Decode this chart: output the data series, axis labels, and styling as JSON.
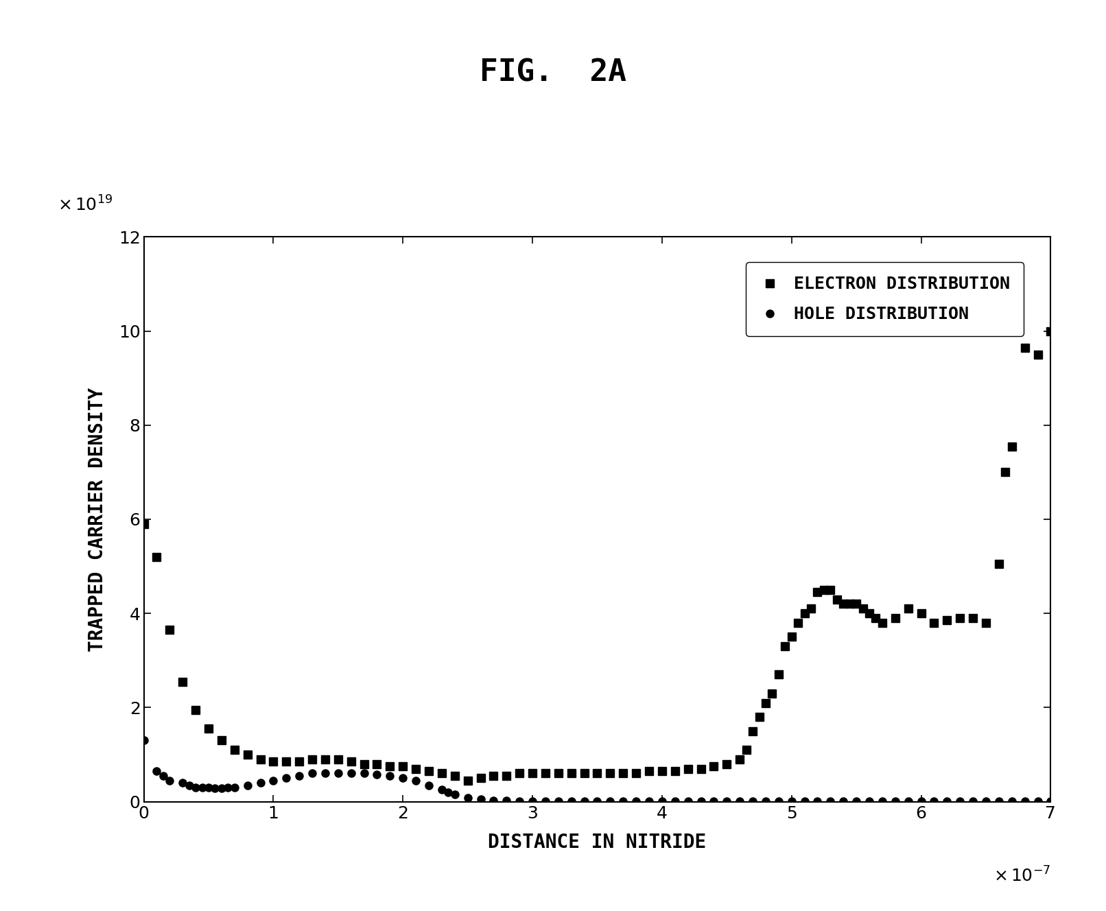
{
  "title": "FIG.  2A",
  "xlabel": "DISTANCE IN NITRIDE",
  "ylabel": "TRAPPED CARRIER DENSITY",
  "xlim": [
    0,
    7
  ],
  "ylim": [
    0,
    12
  ],
  "xticks": [
    0,
    1,
    2,
    3,
    4,
    5,
    6,
    7
  ],
  "yticks": [
    0,
    2,
    4,
    6,
    8,
    10,
    12
  ],
  "legend_electron": "ELECTRON DISTRIBUTION",
  "legend_hole": "HOLE DISTRIBUTION",
  "electron_x": [
    0.0,
    0.1,
    0.2,
    0.3,
    0.4,
    0.5,
    0.6,
    0.7,
    0.8,
    0.9,
    1.0,
    1.1,
    1.2,
    1.3,
    1.4,
    1.5,
    1.6,
    1.7,
    1.8,
    1.9,
    2.0,
    2.1,
    2.2,
    2.3,
    2.4,
    2.5,
    2.6,
    2.7,
    2.8,
    2.9,
    3.0,
    3.1,
    3.2,
    3.3,
    3.4,
    3.5,
    3.6,
    3.7,
    3.8,
    3.9,
    4.0,
    4.1,
    4.2,
    4.3,
    4.4,
    4.5,
    4.6,
    4.65,
    4.7,
    4.75,
    4.8,
    4.85,
    4.9,
    4.95,
    5.0,
    5.05,
    5.1,
    5.15,
    5.2,
    5.25,
    5.3,
    5.35,
    5.4,
    5.45,
    5.5,
    5.55,
    5.6,
    5.65,
    5.7,
    5.8,
    5.9,
    6.0,
    6.1,
    6.2,
    6.3,
    6.4,
    6.5,
    6.6,
    6.65,
    6.7,
    6.8,
    6.9,
    7.0
  ],
  "electron_y": [
    5.9,
    5.2,
    3.65,
    2.55,
    1.95,
    1.55,
    1.3,
    1.1,
    1.0,
    0.9,
    0.85,
    0.85,
    0.85,
    0.9,
    0.9,
    0.9,
    0.85,
    0.8,
    0.8,
    0.75,
    0.75,
    0.7,
    0.65,
    0.6,
    0.55,
    0.45,
    0.5,
    0.55,
    0.55,
    0.6,
    0.6,
    0.6,
    0.6,
    0.6,
    0.6,
    0.6,
    0.6,
    0.6,
    0.6,
    0.65,
    0.65,
    0.65,
    0.7,
    0.7,
    0.75,
    0.8,
    0.9,
    1.1,
    1.5,
    1.8,
    2.1,
    2.3,
    2.7,
    3.3,
    3.5,
    3.8,
    4.0,
    4.1,
    4.45,
    4.5,
    4.5,
    4.3,
    4.2,
    4.2,
    4.2,
    4.1,
    4.0,
    3.9,
    3.8,
    3.9,
    4.1,
    4.0,
    3.8,
    3.85,
    3.9,
    3.9,
    3.8,
    5.05,
    7.0,
    7.55,
    9.65,
    9.5,
    10.0
  ],
  "hole_x": [
    0.0,
    0.1,
    0.15,
    0.2,
    0.3,
    0.35,
    0.4,
    0.45,
    0.5,
    0.55,
    0.6,
    0.65,
    0.7,
    0.8,
    0.9,
    1.0,
    1.1,
    1.2,
    1.3,
    1.4,
    1.5,
    1.6,
    1.7,
    1.8,
    1.9,
    2.0,
    2.1,
    2.2,
    2.3,
    2.35,
    2.4,
    2.5,
    2.6,
    2.7,
    2.8,
    2.9,
    3.0,
    3.1,
    3.2,
    3.3,
    3.4,
    3.5,
    3.6,
    3.7,
    3.8,
    3.9,
    4.0,
    4.1,
    4.2,
    4.3,
    4.4,
    4.5,
    4.6,
    4.7,
    4.8,
    4.9,
    5.0,
    5.1,
    5.2,
    5.3,
    5.4,
    5.5,
    5.6,
    5.7,
    5.8,
    5.9,
    6.0,
    6.1,
    6.2,
    6.3,
    6.4,
    6.5,
    6.6,
    6.7,
    6.8,
    6.9,
    7.0
  ],
  "hole_y": [
    1.3,
    0.65,
    0.55,
    0.45,
    0.4,
    0.35,
    0.3,
    0.3,
    0.3,
    0.28,
    0.28,
    0.3,
    0.3,
    0.35,
    0.4,
    0.45,
    0.5,
    0.55,
    0.6,
    0.6,
    0.6,
    0.6,
    0.6,
    0.58,
    0.55,
    0.5,
    0.45,
    0.35,
    0.25,
    0.2,
    0.15,
    0.08,
    0.05,
    0.03,
    0.02,
    0.01,
    0.005,
    0.005,
    0.005,
    0.005,
    0.005,
    0.005,
    0.005,
    0.005,
    0.005,
    0.005,
    0.005,
    0.005,
    0.005,
    0.005,
    0.005,
    0.005,
    0.005,
    0.005,
    0.005,
    0.005,
    0.005,
    0.005,
    0.005,
    0.005,
    0.005,
    0.005,
    0.005,
    0.005,
    0.005,
    0.005,
    0.005,
    0.005,
    0.005,
    0.005,
    0.005,
    0.005,
    0.005,
    0.005,
    0.005,
    0.005,
    0.005
  ],
  "background_color": "#ffffff",
  "marker_color": "#000000",
  "title_fontsize": 32,
  "label_fontsize": 20,
  "tick_fontsize": 18,
  "legend_fontsize": 18
}
